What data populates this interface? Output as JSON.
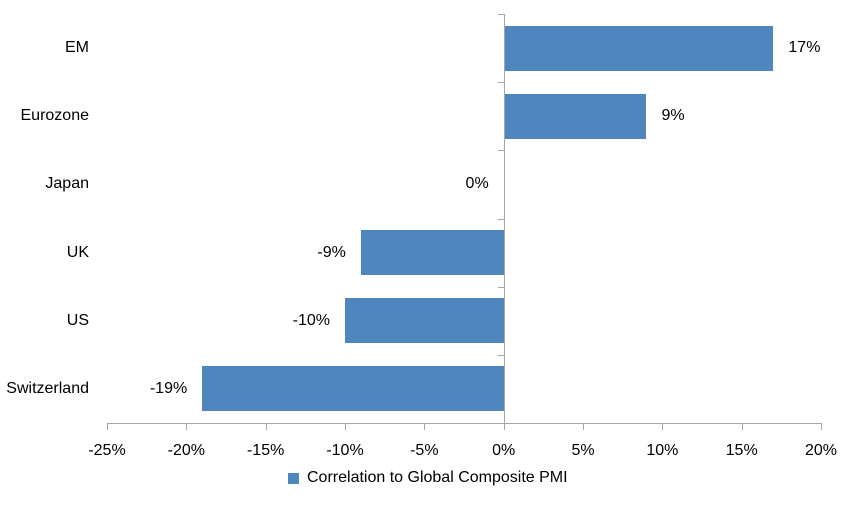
{
  "chart_data": {
    "type": "bar",
    "orientation": "horizontal",
    "title": "",
    "categories": [
      "EM",
      "Eurozone",
      "Japan",
      "UK",
      "US",
      "Switzerland"
    ],
    "values": [
      17,
      9,
      0,
      -9,
      -10,
      -19
    ],
    "value_labels": [
      "17%",
      "9%",
      "0%",
      "-9%",
      "-10%",
      "-19%"
    ],
    "series": [
      {
        "name": "Correlation to Global Composite PMI",
        "values": [
          17,
          9,
          0,
          -9,
          -10,
          -19
        ]
      }
    ],
    "legend": "Correlation to Global Composite PMI",
    "legend_position": "bottom",
    "xlabel": "",
    "ylabel": "",
    "xlim": [
      -25,
      20
    ],
    "x_tick_values": [
      -25,
      -20,
      -15,
      -10,
      -5,
      0,
      5,
      10,
      15,
      20
    ],
    "x_tick_labels": [
      "-25%",
      "-20%",
      "-15%",
      "-10%",
      "-5%",
      "0%",
      "5%",
      "10%",
      "15%",
      "20%"
    ],
    "grid": false,
    "bar_color": "#4e86bd",
    "axis_color": "#a6a6a6",
    "text_color": "#000000",
    "background_color": "#ffffff"
  }
}
